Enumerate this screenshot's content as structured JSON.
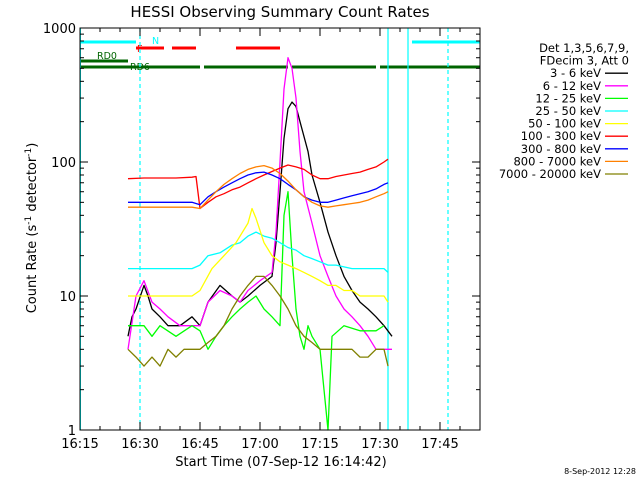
{
  "chart_data": {
    "type": "line",
    "title": "HESSI Observing Summary Count Rates",
    "xlabel": "Start Time (07-Sep-12 16:14:42)",
    "ylabel_main": "Count Rate (s",
    "ylabel_sup1": "-1",
    "ylabel_mid": " detector",
    "ylabel_sup2": "-1",
    "ylabel_end": ")",
    "yscale": "log",
    "xlim_minutes": [
      0,
      100
    ],
    "ylim": [
      1,
      1000
    ],
    "x_ticks": [
      {
        "label": "16:15",
        "t": 0
      },
      {
        "label": "16:30",
        "t": 15
      },
      {
        "label": "16:45",
        "t": 30
      },
      {
        "label": "17:00",
        "t": 45
      },
      {
        "label": "17:15",
        "t": 60
      },
      {
        "label": "17:30",
        "t": 75
      },
      {
        "label": "17:45",
        "t": 90
      }
    ],
    "y_ticks": [
      {
        "label": "1",
        "v": 1
      },
      {
        "label": "10",
        "v": 10
      },
      {
        "label": "100",
        "v": 100
      },
      {
        "label": "1000",
        "v": 1000
      }
    ],
    "legend_header": [
      "Det 1,3,5,6,7,9,",
      "FDecim 3, Att 0"
    ],
    "series": [
      {
        "name": "3 - 6 keV",
        "color": "#000000",
        "points": [
          [
            12,
            5
          ],
          [
            13,
            7
          ],
          [
            14,
            8
          ],
          [
            16,
            12
          ],
          [
            17,
            10
          ],
          [
            18,
            8
          ],
          [
            20,
            7
          ],
          [
            22,
            6
          ],
          [
            25,
            6
          ],
          [
            28,
            7
          ],
          [
            30,
            6
          ],
          [
            32,
            9
          ],
          [
            35,
            12
          ],
          [
            38,
            10
          ],
          [
            40,
            9
          ],
          [
            42,
            10
          ],
          [
            45,
            12
          ],
          [
            48,
            14
          ],
          [
            49,
            25
          ],
          [
            50,
            60
          ],
          [
            51,
            150
          ],
          [
            52,
            250
          ],
          [
            53,
            280
          ],
          [
            54,
            260
          ],
          [
            55,
            200
          ],
          [
            57,
            120
          ],
          [
            58,
            80
          ],
          [
            60,
            50
          ],
          [
            62,
            30
          ],
          [
            64,
            20
          ],
          [
            66,
            14
          ],
          [
            68,
            11
          ],
          [
            70,
            9
          ],
          [
            72,
            8
          ],
          [
            74,
            7
          ],
          [
            76,
            6
          ],
          [
            78,
            5
          ]
        ]
      },
      {
        "name": "6 - 12 keV",
        "color": "#ff00ff",
        "points": [
          [
            12,
            4
          ],
          [
            14,
            10
          ],
          [
            16,
            13
          ],
          [
            18,
            9
          ],
          [
            20,
            8
          ],
          [
            22,
            7
          ],
          [
            25,
            6
          ],
          [
            28,
            6
          ],
          [
            30,
            6
          ],
          [
            32,
            9
          ],
          [
            35,
            11
          ],
          [
            38,
            10
          ],
          [
            40,
            9
          ],
          [
            42,
            11
          ],
          [
            45,
            13
          ],
          [
            48,
            15
          ],
          [
            49,
            30
          ],
          [
            50,
            100
          ],
          [
            51,
            350
          ],
          [
            52,
            600
          ],
          [
            53,
            500
          ],
          [
            54,
            300
          ],
          [
            55,
            120
          ],
          [
            56,
            60
          ],
          [
            58,
            35
          ],
          [
            60,
            20
          ],
          [
            62,
            14
          ],
          [
            64,
            10
          ],
          [
            66,
            8
          ],
          [
            68,
            7
          ],
          [
            70,
            6
          ],
          [
            72,
            5
          ],
          [
            74,
            4
          ],
          [
            78,
            4
          ]
        ]
      },
      {
        "name": "12 - 25 keV",
        "color": "#00ff00",
        "points": [
          [
            12,
            6
          ],
          [
            16,
            6
          ],
          [
            18,
            5
          ],
          [
            20,
            6
          ],
          [
            24,
            5
          ],
          [
            28,
            6
          ],
          [
            30,
            5.5
          ],
          [
            32,
            4
          ],
          [
            34,
            5
          ],
          [
            36,
            6
          ],
          [
            38,
            7
          ],
          [
            40,
            8
          ],
          [
            42,
            9
          ],
          [
            44,
            10
          ],
          [
            46,
            8
          ],
          [
            48,
            7
          ],
          [
            50,
            6
          ],
          [
            51,
            40
          ],
          [
            52,
            60
          ],
          [
            53,
            20
          ],
          [
            54,
            8
          ],
          [
            55,
            5
          ],
          [
            56,
            4
          ],
          [
            57,
            6
          ],
          [
            58,
            5
          ],
          [
            60,
            4
          ],
          [
            61,
            2
          ],
          [
            62,
            1
          ],
          [
            63,
            5
          ],
          [
            66,
            6
          ],
          [
            70,
            5.5
          ],
          [
            74,
            5.5
          ],
          [
            76,
            6
          ]
        ]
      },
      {
        "name": "25 - 50 keV",
        "color": "#00ffff",
        "points": [
          [
            12,
            16
          ],
          [
            20,
            16
          ],
          [
            28,
            16
          ],
          [
            30,
            17
          ],
          [
            32,
            20
          ],
          [
            35,
            21
          ],
          [
            38,
            24
          ],
          [
            40,
            25
          ],
          [
            42,
            28
          ],
          [
            44,
            30
          ],
          [
            46,
            28
          ],
          [
            48,
            27
          ],
          [
            50,
            25
          ],
          [
            52,
            23
          ],
          [
            54,
            22
          ],
          [
            56,
            20
          ],
          [
            58,
            19
          ],
          [
            60,
            18
          ],
          [
            62,
            17
          ],
          [
            64,
            17
          ],
          [
            68,
            16
          ],
          [
            72,
            16
          ],
          [
            76,
            16
          ],
          [
            77,
            15
          ]
        ]
      },
      {
        "name": "50 - 100 keV",
        "color": "#ffff00",
        "points": [
          [
            12,
            10
          ],
          [
            16,
            10
          ],
          [
            20,
            10
          ],
          [
            24,
            10
          ],
          [
            28,
            10
          ],
          [
            30,
            11
          ],
          [
            33,
            16
          ],
          [
            36,
            20
          ],
          [
            39,
            25
          ],
          [
            42,
            35
          ],
          [
            43,
            45
          ],
          [
            44,
            38
          ],
          [
            46,
            25
          ],
          [
            48,
            20
          ],
          [
            50,
            18
          ],
          [
            52,
            17
          ],
          [
            54,
            16
          ],
          [
            56,
            15
          ],
          [
            58,
            14
          ],
          [
            60,
            13
          ],
          [
            62,
            12
          ],
          [
            64,
            12
          ],
          [
            66,
            11
          ],
          [
            68,
            11
          ],
          [
            70,
            10
          ],
          [
            72,
            10
          ],
          [
            74,
            10
          ],
          [
            76,
            10
          ],
          [
            77,
            9
          ]
        ]
      },
      {
        "name": "100 - 300 keV",
        "color": "#ff0000",
        "points": [
          [
            12,
            75
          ],
          [
            16,
            76
          ],
          [
            20,
            76
          ],
          [
            24,
            76
          ],
          [
            28,
            77
          ],
          [
            29,
            78
          ],
          [
            30,
            45
          ],
          [
            32,
            50
          ],
          [
            34,
            55
          ],
          [
            36,
            58
          ],
          [
            38,
            62
          ],
          [
            40,
            65
          ],
          [
            42,
            70
          ],
          [
            44,
            75
          ],
          [
            46,
            80
          ],
          [
            48,
            85
          ],
          [
            50,
            90
          ],
          [
            52,
            95
          ],
          [
            54,
            92
          ],
          [
            56,
            88
          ],
          [
            58,
            80
          ],
          [
            60,
            75
          ],
          [
            62,
            75
          ],
          [
            64,
            78
          ],
          [
            66,
            80
          ],
          [
            68,
            82
          ],
          [
            70,
            84
          ],
          [
            72,
            88
          ],
          [
            74,
            92
          ],
          [
            76,
            100
          ],
          [
            77,
            105
          ]
        ]
      },
      {
        "name": "300 - 800 keV",
        "color": "#0000ff",
        "points": [
          [
            12,
            50
          ],
          [
            16,
            50
          ],
          [
            20,
            50
          ],
          [
            24,
            50
          ],
          [
            28,
            50
          ],
          [
            30,
            48
          ],
          [
            32,
            55
          ],
          [
            34,
            60
          ],
          [
            36,
            65
          ],
          [
            38,
            70
          ],
          [
            40,
            75
          ],
          [
            42,
            80
          ],
          [
            44,
            83
          ],
          [
            46,
            84
          ],
          [
            48,
            80
          ],
          [
            50,
            75
          ],
          [
            52,
            68
          ],
          [
            54,
            62
          ],
          [
            56,
            55
          ],
          [
            58,
            52
          ],
          [
            60,
            50
          ],
          [
            62,
            50
          ],
          [
            64,
            52
          ],
          [
            66,
            54
          ],
          [
            68,
            56
          ],
          [
            70,
            58
          ],
          [
            72,
            60
          ],
          [
            74,
            63
          ],
          [
            76,
            68
          ],
          [
            77,
            70
          ]
        ]
      },
      {
        "name": "800 - 7000 keV",
        "color": "#ff8000",
        "points": [
          [
            12,
            46
          ],
          [
            16,
            46
          ],
          [
            20,
            46
          ],
          [
            24,
            46
          ],
          [
            28,
            46
          ],
          [
            30,
            45
          ],
          [
            32,
            52
          ],
          [
            34,
            60
          ],
          [
            36,
            68
          ],
          [
            38,
            75
          ],
          [
            40,
            82
          ],
          [
            42,
            88
          ],
          [
            44,
            92
          ],
          [
            46,
            94
          ],
          [
            48,
            90
          ],
          [
            50,
            82
          ],
          [
            52,
            72
          ],
          [
            54,
            62
          ],
          [
            56,
            55
          ],
          [
            58,
            50
          ],
          [
            60,
            47
          ],
          [
            62,
            46
          ],
          [
            64,
            47
          ],
          [
            66,
            48
          ],
          [
            68,
            49
          ],
          [
            70,
            50
          ],
          [
            72,
            52
          ],
          [
            74,
            55
          ],
          [
            76,
            58
          ],
          [
            77,
            60
          ]
        ]
      },
      {
        "name": "7000 - 20000 keV",
        "color": "#808000",
        "points": [
          [
            12,
            4
          ],
          [
            14,
            3.5
          ],
          [
            16,
            3
          ],
          [
            18,
            3.5
          ],
          [
            20,
            3
          ],
          [
            22,
            4
          ],
          [
            24,
            3.5
          ],
          [
            26,
            4
          ],
          [
            28,
            4
          ],
          [
            30,
            4
          ],
          [
            32,
            4.5
          ],
          [
            34,
            5
          ],
          [
            36,
            6
          ],
          [
            38,
            8
          ],
          [
            40,
            10
          ],
          [
            42,
            12
          ],
          [
            44,
            14
          ],
          [
            46,
            14
          ],
          [
            48,
            12
          ],
          [
            50,
            10
          ],
          [
            52,
            8
          ],
          [
            54,
            6
          ],
          [
            56,
            5
          ],
          [
            58,
            4.5
          ],
          [
            60,
            4
          ],
          [
            62,
            4
          ],
          [
            64,
            4
          ],
          [
            66,
            4
          ],
          [
            68,
            4
          ],
          [
            70,
            3.5
          ],
          [
            72,
            3.5
          ],
          [
            74,
            4
          ],
          [
            76,
            4
          ],
          [
            77,
            3
          ]
        ]
      }
    ],
    "flags": {
      "N": {
        "label": "N",
        "color": "#00ffff",
        "segments": [
          [
            0,
            14
          ],
          [
            83,
            100
          ]
        ]
      },
      "F": {
        "label": "F",
        "color": "#ff0000",
        "segments": [
          [
            14,
            21
          ],
          [
            23,
            29
          ],
          [
            39,
            50
          ]
        ]
      },
      "RD0": {
        "label": "RD0",
        "color": "#006400",
        "segments": [
          [
            0,
            12
          ]
        ]
      },
      "RD6": {
        "label": "RD6",
        "color": "#006400",
        "segments": [
          [
            0,
            30
          ],
          [
            31,
            52
          ],
          [
            53,
            74
          ],
          [
            75,
            100
          ]
        ]
      }
    },
    "vlines_solid": [
      0.1,
      77,
      82
    ],
    "vlines_dashed": [
      15,
      92
    ],
    "timestamp": "8-Sep-2012 12:28"
  }
}
